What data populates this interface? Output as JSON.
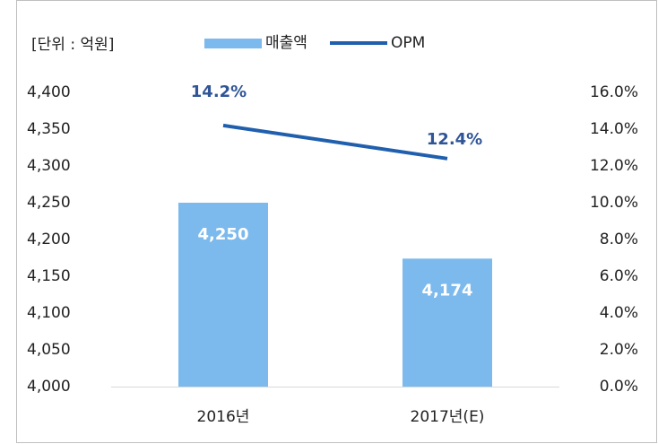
{
  "chart_data": {
    "type": "bar",
    "unit_label": "[단위 : 억원]",
    "categories": [
      "2016년",
      "2017년(E)"
    ],
    "series": [
      {
        "name": "매출액",
        "type": "bar",
        "color": "#7cb9ed",
        "values": [
          4250,
          4174
        ],
        "value_labels": [
          "4,250",
          "4,174"
        ],
        "axis": "y"
      },
      {
        "name": "OPM",
        "type": "line",
        "color": "#1f5fad",
        "values": [
          14.2,
          12.4
        ],
        "value_labels": [
          "14.2%",
          "12.4%"
        ],
        "axis": "y2"
      }
    ],
    "ylim": [
      4000,
      4400
    ],
    "yticks": [
      {
        "value": 4000,
        "label": "4,000"
      },
      {
        "value": 4050,
        "label": "4,050"
      },
      {
        "value": 4100,
        "label": "4,100"
      },
      {
        "value": 4150,
        "label": "4,150"
      },
      {
        "value": 4200,
        "label": "4,200"
      },
      {
        "value": 4250,
        "label": "4,250"
      },
      {
        "value": 4300,
        "label": "4,300"
      },
      {
        "value": 4350,
        "label": "4,350"
      },
      {
        "value": 4400,
        "label": "4,400"
      }
    ],
    "y2lim": [
      0,
      16
    ],
    "y2ticks": [
      {
        "value": 0,
        "label": "0.0%"
      },
      {
        "value": 2,
        "label": "2.0%"
      },
      {
        "value": 4,
        "label": "4.0%"
      },
      {
        "value": 6,
        "label": "6.0%"
      },
      {
        "value": 8,
        "label": "8.0%"
      },
      {
        "value": 10,
        "label": "10.0%"
      },
      {
        "value": 12,
        "label": "12.0%"
      },
      {
        "value": 14,
        "label": "14.0%"
      },
      {
        "value": 16,
        "label": "16.0%"
      }
    ],
    "grid": false
  }
}
